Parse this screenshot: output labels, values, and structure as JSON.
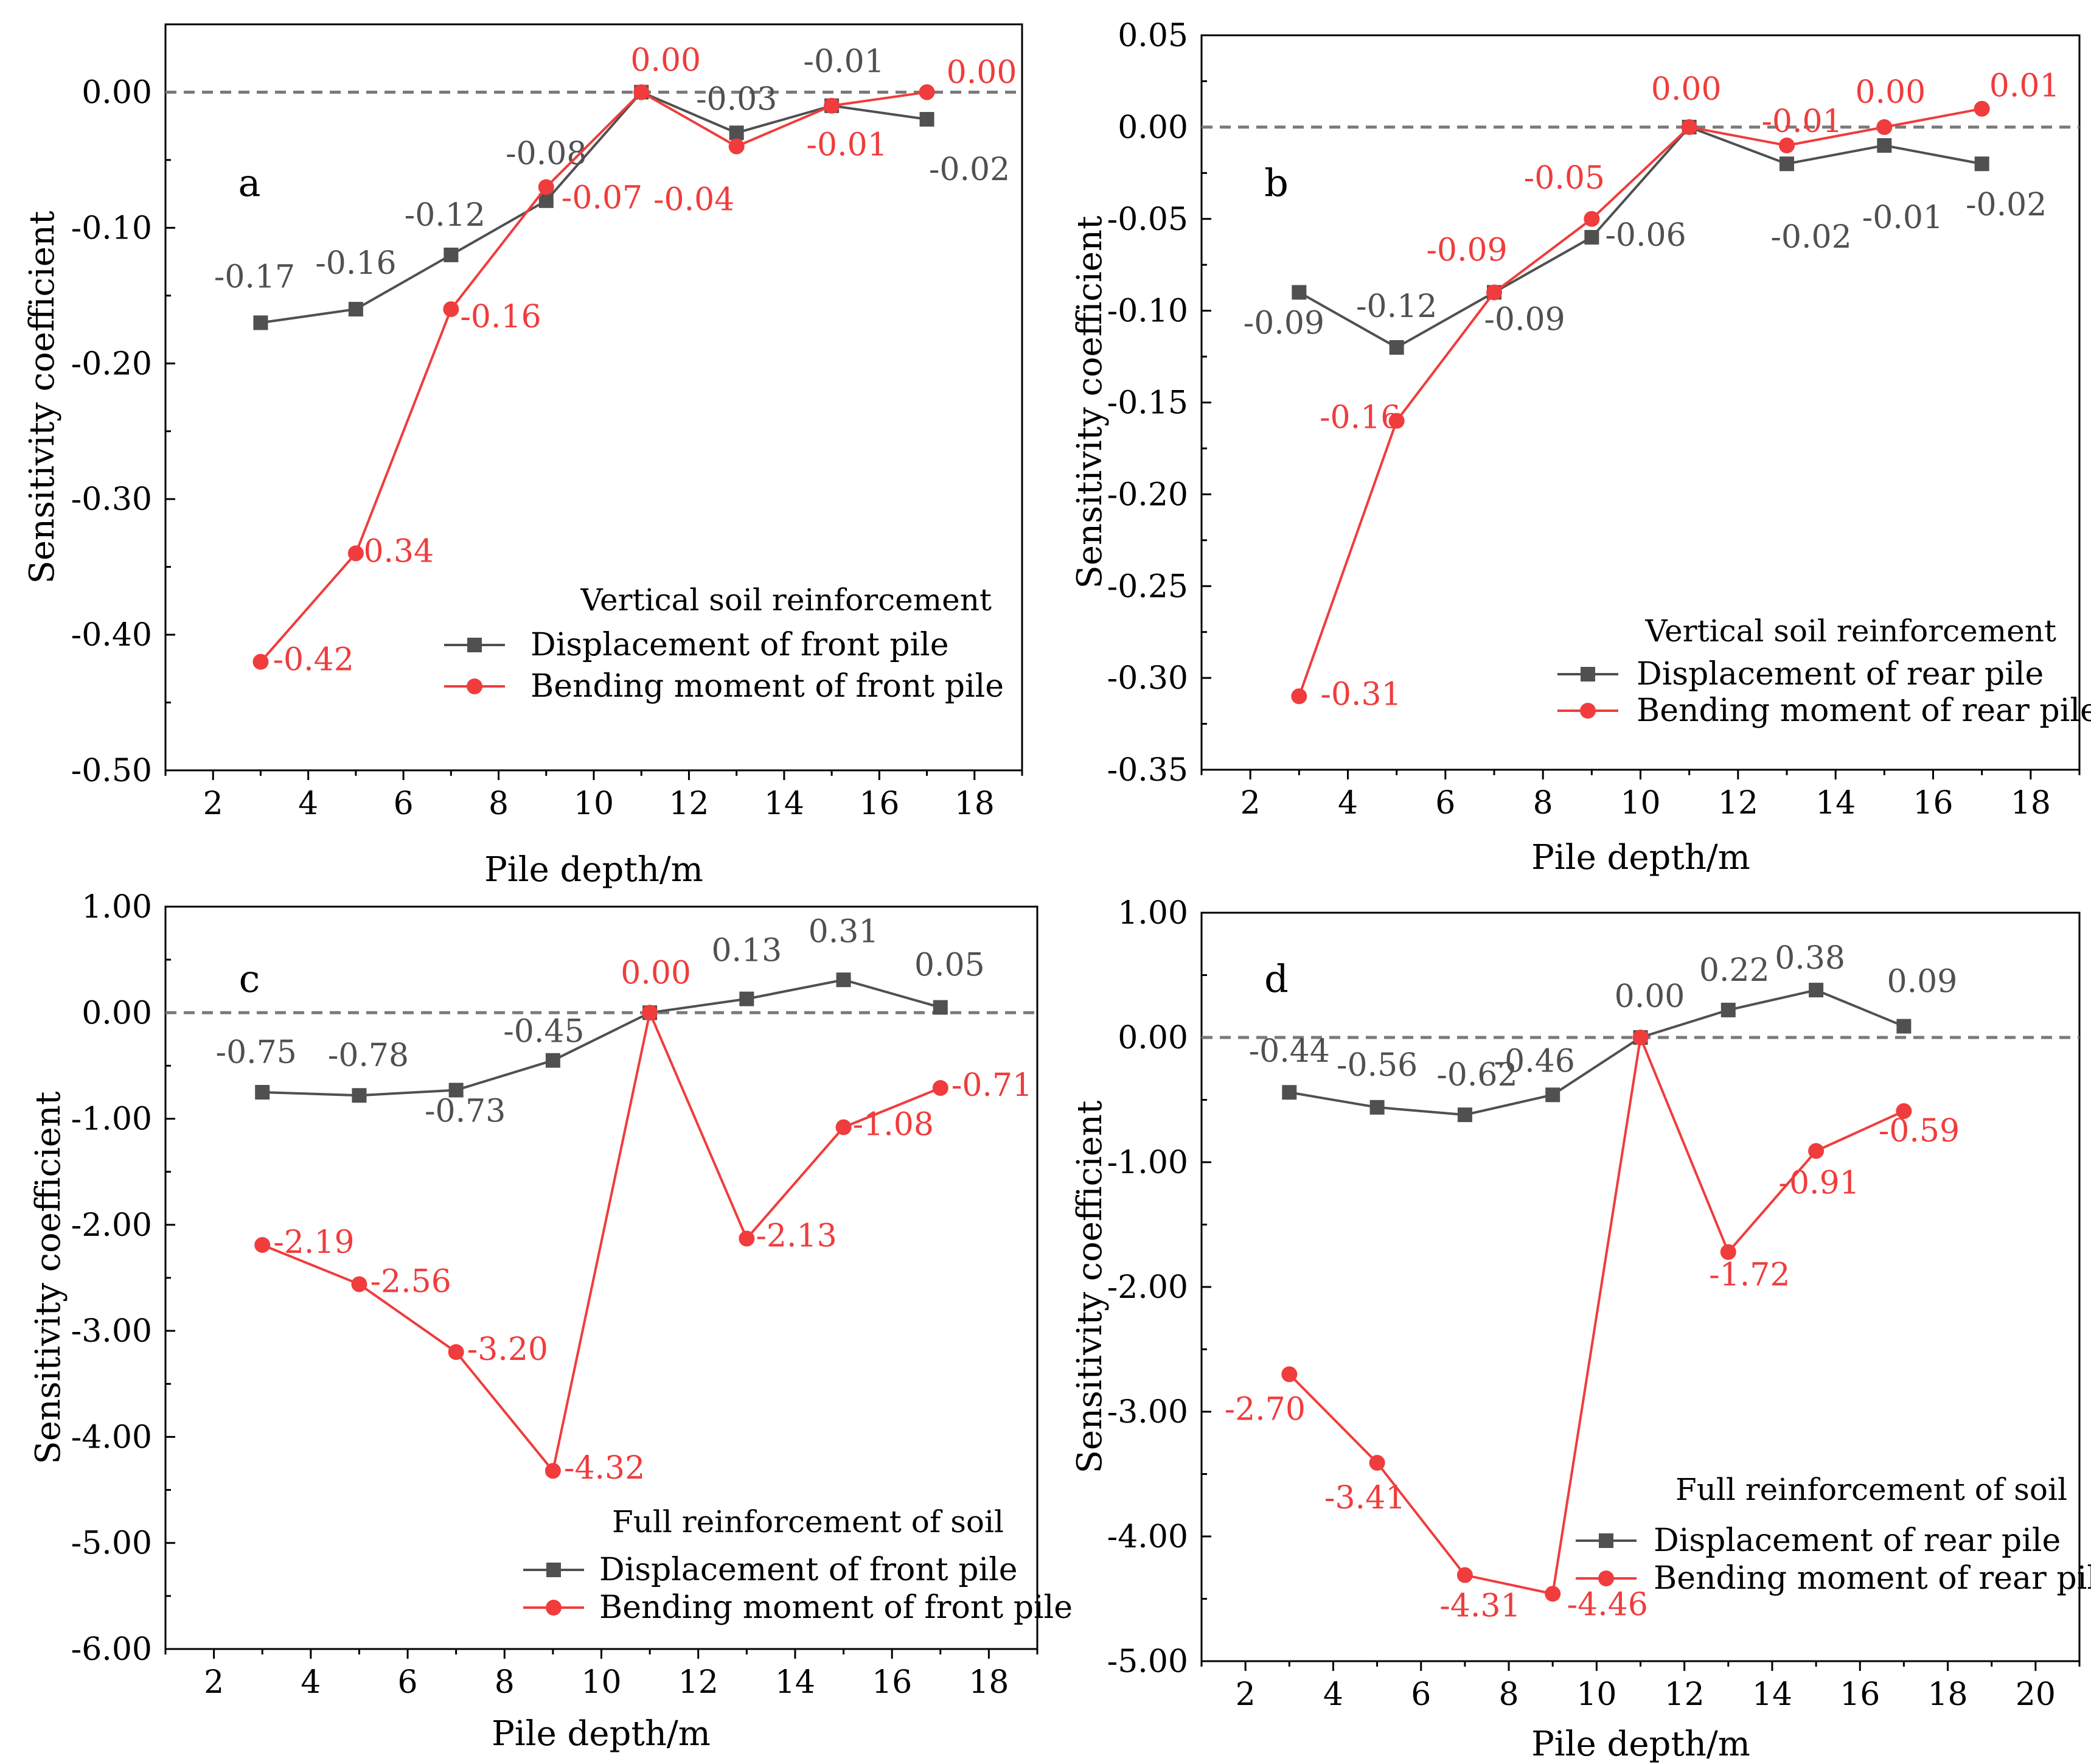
{
  "colors": {
    "grey": "#505050",
    "red": "#f03c3c",
    "zero": "#7a7a7a",
    "axis": "#000000"
  },
  "chart_data": [
    {
      "type": "line",
      "panel_label": "a",
      "xlabel": "Pile depth/m",
      "ylabel": "Sensitivity coefficient",
      "xlim": [
        1,
        19
      ],
      "ylim": [
        -0.5,
        0.05
      ],
      "xticks": [
        "2",
        "4",
        "6",
        "8",
        "10",
        "12",
        "14",
        "16",
        "18"
      ],
      "yticks": [
        "0.00",
        "-0.10",
        "-0.20",
        "-0.30",
        "-0.40",
        "-0.50"
      ],
      "legend_title": "Vertical soil reinforcement",
      "x": [
        3,
        5,
        7,
        9,
        11,
        13,
        15,
        17
      ],
      "series": [
        {
          "name": "Displacement of front pile",
          "marker": "square",
          "values": [
            -0.17,
            -0.16,
            -0.12,
            -0.08,
            0.0,
            -0.03,
            -0.01,
            -0.02
          ],
          "labels": [
            "-0.17",
            "-0.16",
            "-0.12",
            "-0.08",
            "",
            "-0.03",
            "-0.01",
            "-0.02"
          ]
        },
        {
          "name": "Bending moment of front pile",
          "marker": "circle",
          "values": [
            -0.42,
            -0.34,
            -0.16,
            -0.07,
            0.0,
            -0.04,
            -0.01,
            0.0
          ],
          "labels": [
            "-0.42",
            "-0.34",
            "-0.16",
            "-0.07",
            "0.00",
            "-0.04",
            "-0.01",
            "0.00"
          ]
        }
      ]
    },
    {
      "type": "line",
      "panel_label": "b",
      "xlabel": "Pile depth/m",
      "ylabel": "Sensitivity coefficient",
      "xlim": [
        1,
        19
      ],
      "ylim": [
        -0.35,
        0.05
      ],
      "xticks": [
        "2",
        "4",
        "6",
        "8",
        "10",
        "12",
        "14",
        "16",
        "18"
      ],
      "yticks": [
        "0.05",
        "0.00",
        "-0.05",
        "-0.10",
        "-0.15",
        "-0.20",
        "-0.25",
        "-0.30",
        "-0.35"
      ],
      "legend_title": "Vertical soil reinforcement",
      "x": [
        3,
        5,
        7,
        9,
        11,
        13,
        15,
        17
      ],
      "series": [
        {
          "name": "Displacement of rear pile",
          "marker": "square",
          "values": [
            -0.09,
            -0.12,
            -0.09,
            -0.06,
            0.0,
            -0.02,
            -0.01,
            -0.02
          ],
          "labels": [
            "-0.09",
            "-0.12",
            "-0.09",
            "-0.06",
            "",
            "-0.02",
            "-0.01",
            "-0.02"
          ]
        },
        {
          "name": "Bending moment of rear pile",
          "marker": "circle",
          "values": [
            -0.31,
            -0.16,
            -0.09,
            -0.05,
            0.0,
            -0.01,
            0.0,
            0.01
          ],
          "labels": [
            "-0.31",
            "-0.16",
            "-0.09",
            "-0.05",
            "0.00",
            "-0.01",
            "0.00",
            "0.01"
          ]
        }
      ]
    },
    {
      "type": "line",
      "panel_label": "c",
      "xlabel": "Pile depth/m",
      "ylabel": "Sensitivity coefficient",
      "xlim": [
        1,
        19
      ],
      "ylim": [
        -6,
        1
      ],
      "xticks": [
        "2",
        "4",
        "6",
        "8",
        "10",
        "12",
        "14",
        "16",
        "18"
      ],
      "yticks": [
        "1.00",
        "0.00",
        "-1.00",
        "-2.00",
        "-3.00",
        "-4.00",
        "-5.00",
        "-6.00"
      ],
      "legend_title": "Full reinforcement of soil",
      "x": [
        3,
        5,
        7,
        9,
        11,
        13,
        15,
        17
      ],
      "series": [
        {
          "name": "Displacement of front pile",
          "marker": "square",
          "values": [
            -0.75,
            -0.78,
            -0.73,
            -0.45,
            0.0,
            0.13,
            0.31,
            0.05
          ],
          "labels": [
            "-0.75",
            "-0.78",
            "-0.73",
            "-0.45",
            "",
            "0.13",
            "0.31",
            "0.05"
          ]
        },
        {
          "name": "Bending moment of front pile",
          "marker": "circle",
          "values": [
            -2.19,
            -2.56,
            -3.2,
            -4.32,
            0.0,
            -2.13,
            -1.08,
            -0.71
          ],
          "labels": [
            "-2.19",
            "-2.56",
            "-3.20",
            "-4.32",
            "0.00",
            "-2.13",
            "-1.08",
            "-0.71"
          ]
        }
      ]
    },
    {
      "type": "line",
      "panel_label": "d",
      "xlabel": "Pile depth/m",
      "ylabel": "Sensitivity coefficient",
      "xlim": [
        1,
        21
      ],
      "ylim": [
        -5,
        1
      ],
      "xticks": [
        "2",
        "4",
        "6",
        "8",
        "10",
        "12",
        "14",
        "16",
        "18",
        "20"
      ],
      "yticks": [
        "1.00",
        "0.00",
        "-1.00",
        "-2.00",
        "-3.00",
        "-4.00",
        "-5.00"
      ],
      "legend_title": "Full reinforcement of soil",
      "x": [
        3,
        5,
        7,
        9,
        11,
        13,
        15,
        17
      ],
      "series": [
        {
          "name": "Displacement of rear pile",
          "marker": "square",
          "values": [
            -0.44,
            -0.56,
            -0.62,
            -0.46,
            0.0,
            0.22,
            0.38,
            0.09
          ],
          "labels": [
            "-0.44",
            "-0.56",
            "-0.62",
            "-0.46",
            "0.00",
            "0.22",
            "0.38",
            "0.09"
          ]
        },
        {
          "name": "Bending moment of rear pile",
          "marker": "circle",
          "values": [
            -2.7,
            -3.41,
            -4.31,
            -4.46,
            0.0,
            -1.72,
            -0.91,
            -0.59
          ],
          "labels": [
            "-2.70",
            "-3.41",
            "-4.31",
            "-4.46",
            "",
            "-1.72",
            "-0.91",
            "-0.59"
          ]
        }
      ]
    }
  ]
}
